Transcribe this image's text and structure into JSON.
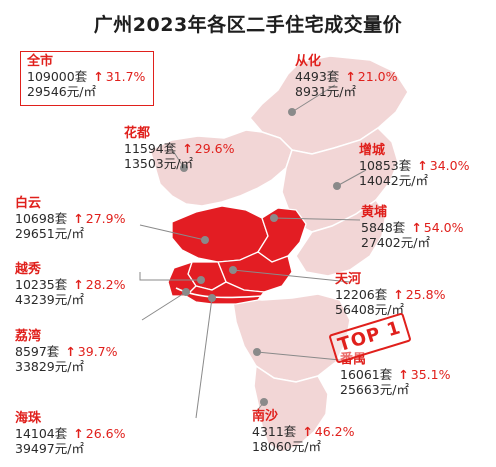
{
  "title": "广州2023年各区二手住宅成交量价",
  "colors": {
    "accent": "#e0201c",
    "region_light": "#f2d6d6",
    "region_core": "#e31d23"
  },
  "total": {
    "name": "全市",
    "volume": "109000套",
    "change": "31.7%",
    "price": "29546元/㎡"
  },
  "districts": [
    {
      "id": "conghua",
      "name": "从化",
      "volume": "4493套",
      "change": "21.0%",
      "price": "8931元/㎡"
    },
    {
      "id": "huadu",
      "name": "花都",
      "volume": "11594套",
      "change": "29.6%",
      "price": "13503元/㎡"
    },
    {
      "id": "zengcheng",
      "name": "增城",
      "volume": "10853套",
      "change": "34.0%",
      "price": "14042元/㎡"
    },
    {
      "id": "baiyun",
      "name": "白云",
      "volume": "10698套",
      "change": "27.9%",
      "price": "29651元/㎡"
    },
    {
      "id": "huangpu",
      "name": "黄埔",
      "volume": "5848套",
      "change": "54.0%",
      "price": "27402元/㎡"
    },
    {
      "id": "yuexiu",
      "name": "越秀",
      "volume": "10235套",
      "change": "28.2%",
      "price": "43239元/㎡"
    },
    {
      "id": "tianhe",
      "name": "天河",
      "volume": "12206套",
      "change": "25.8%",
      "price": "56408元/㎡"
    },
    {
      "id": "liwan",
      "name": "荔湾",
      "volume": "8597套",
      "change": "39.7%",
      "price": "33829元/㎡"
    },
    {
      "id": "panyu",
      "name": "番禺",
      "volume": "16061套",
      "change": "35.1%",
      "price": "25663元/㎡"
    },
    {
      "id": "haizhu",
      "name": "海珠",
      "volume": "14104套",
      "change": "26.6%",
      "price": "39497元/㎡"
    },
    {
      "id": "nansha",
      "name": "南沙",
      "volume": "4311套",
      "change": "46.2%",
      "price": "18060元/㎡"
    }
  ],
  "badge": "TOP 1",
  "arrow_glyph": "↑"
}
